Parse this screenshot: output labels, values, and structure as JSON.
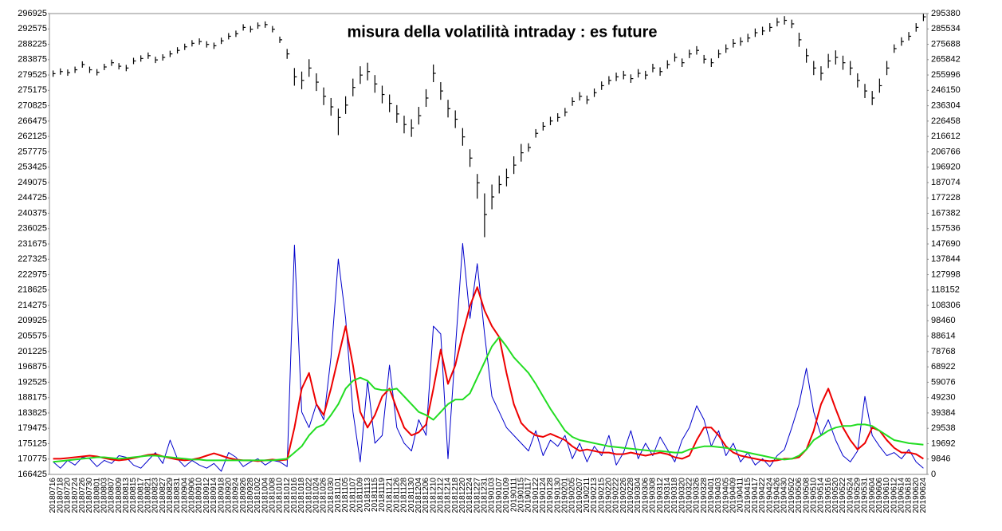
{
  "chart_data": {
    "type": "combo",
    "title": "misura della volatilità intraday : es future",
    "categories": [
      "20180716",
      "20180718",
      "20180720",
      "20180724",
      "20180726",
      "20180730",
      "20180801",
      "20180803",
      "20180807",
      "20180809",
      "20180813",
      "20180815",
      "20180817",
      "20180821",
      "20180823",
      "20180827",
      "20180829",
      "20180831",
      "20180904",
      "20180906",
      "20180910",
      "20180912",
      "20180914",
      "20180918",
      "20180920",
      "20180924",
      "20180926",
      "20180928",
      "20181002",
      "20181004",
      "20181008",
      "20181010",
      "20181012",
      "20181016",
      "20181018",
      "20181022",
      "20181024",
      "20181026",
      "20181030",
      "20181101",
      "20181105",
      "20181107",
      "20181109",
      "20181113",
      "20181115",
      "20181119",
      "20181121",
      "20181126",
      "20181128",
      "20181130",
      "20181204",
      "20181206",
      "20181210",
      "20181212",
      "20181214",
      "20181218",
      "20181220",
      "20181224",
      "20181227",
      "20181231",
      "20190103",
      "20190107",
      "20190109",
      "20190111",
      "20190115",
      "20190117",
      "20190122",
      "20190124",
      "20190128",
      "20190130",
      "20190201",
      "20190205",
      "20190207",
      "20190211",
      "20190213",
      "20190215",
      "20190220",
      "20190222",
      "20190226",
      "20190228",
      "20190304",
      "20190306",
      "20190308",
      "20190312",
      "20190314",
      "20190318",
      "20190320",
      "20190322",
      "20190326",
      "20190328",
      "20190401",
      "20190403",
      "20190405",
      "20190409",
      "20190411",
      "20190415",
      "20190417",
      "20190422",
      "20190424",
      "20190426",
      "20190430",
      "20190502",
      "20190506",
      "20190508",
      "20190510",
      "20190514",
      "20190516",
      "20190520",
      "20190522",
      "20190524",
      "20190529",
      "20190531",
      "20190604",
      "20190606",
      "20190610",
      "20190612",
      "20190614",
      "20190618",
      "20190620",
      "20190624"
    ],
    "price": {
      "color": "#000000",
      "high": [
        280800,
        281400,
        281100,
        281900,
        283400,
        281900,
        281200,
        282700,
        283900,
        282900,
        282400,
        284400,
        285100,
        285900,
        284700,
        285400,
        286400,
        287400,
        288400,
        289400,
        289900,
        289100,
        288700,
        290100,
        291400,
        292100,
        293900,
        293400,
        294400,
        294700,
        293400,
        290400,
        286900,
        281500,
        280500,
        284000,
        280000,
        276000,
        273000,
        270000,
        273500,
        278500,
        282000,
        283000,
        279500,
        276500,
        274000,
        271000,
        268000,
        267000,
        270500,
        275500,
        282500,
        277500,
        272500,
        269500,
        264500,
        258500,
        251500,
        246000,
        248500,
        251000,
        253000,
        256500,
        260000,
        260200,
        264200,
        266200,
        267700,
        268700,
        270200,
        273200,
        274700,
        273700,
        275700,
        277700,
        279200,
        280200,
        280700,
        279700,
        281200,
        280700,
        282700,
        281700,
        283700,
        285700,
        284200,
        286700,
        287700,
        285200,
        284200,
        286700,
        288200,
        289700,
        290200,
        291200,
        292700,
        293200,
        294200,
        295700,
        296200,
        295200,
        291500,
        287000,
        283500,
        282000,
        285500,
        286500,
        285000,
        283500,
        280000,
        277000,
        275000,
        278500,
        283500,
        288200,
        290200,
        291700,
        294200,
        296800
      ],
      "low": [
        279000,
        279600,
        279300,
        280100,
        281600,
        280100,
        279400,
        280900,
        282100,
        281100,
        280600,
        282600,
        283300,
        284100,
        282900,
        283600,
        284600,
        285600,
        286600,
        287600,
        288100,
        287300,
        286900,
        288300,
        289600,
        290300,
        292100,
        291600,
        292600,
        292900,
        291600,
        288600,
        284100,
        276500,
        275500,
        279000,
        275000,
        271000,
        268000,
        262500,
        268500,
        273500,
        277000,
        278000,
        274500,
        271500,
        269000,
        266000,
        263000,
        262000,
        265500,
        270500,
        277500,
        272500,
        267500,
        264500,
        259500,
        253500,
        244500,
        233600,
        241500,
        246000,
        248000,
        251500,
        255000,
        257800,
        261800,
        263800,
        265300,
        266300,
        267800,
        270800,
        272300,
        271300,
        273300,
        275300,
        276800,
        277800,
        278300,
        277300,
        278800,
        278300,
        280300,
        279300,
        281300,
        283300,
        281800,
        284300,
        285300,
        282800,
        281800,
        284300,
        285800,
        287300,
        287800,
        288800,
        290300,
        290800,
        291800,
        293300,
        293800,
        292800,
        287500,
        283000,
        279500,
        278000,
        281500,
        282500,
        281000,
        279500,
        276000,
        273000,
        271000,
        274500,
        279500,
        285800,
        287800,
        289300,
        291800,
        294800
      ],
      "close": [
        279900,
        280500,
        280200,
        281000,
        282500,
        281000,
        280300,
        281800,
        283000,
        282000,
        281500,
        283500,
        284200,
        285000,
        283800,
        284500,
        285500,
        286500,
        287500,
        288500,
        289000,
        288200,
        287800,
        289200,
        290500,
        291200,
        293000,
        292500,
        293500,
        293800,
        292500,
        289500,
        285500,
        279000,
        278000,
        281500,
        277500,
        273500,
        270500,
        267500,
        271000,
        276000,
        279500,
        280500,
        277000,
        274000,
        271500,
        268500,
        265500,
        264500,
        268000,
        273000,
        280000,
        275000,
        270000,
        267000,
        262000,
        256000,
        249000,
        240000,
        245000,
        248500,
        250500,
        254000,
        257500,
        259000,
        263000,
        265000,
        266500,
        267500,
        269000,
        272000,
        273500,
        272500,
        274500,
        276500,
        278000,
        279000,
        279500,
        278500,
        280000,
        279500,
        281500,
        280500,
        282500,
        284500,
        283000,
        285500,
        286500,
        284000,
        283000,
        285500,
        287000,
        288500,
        289000,
        290000,
        291500,
        292000,
        293000,
        294500,
        295000,
        294000,
        289500,
        285000,
        281500,
        280000,
        283500,
        284500,
        283000,
        281500,
        278000,
        275000,
        273000,
        276500,
        281500,
        287000,
        289000,
        290500,
        293000,
        296000
      ]
    },
    "series": [
      {
        "color": "#0000cc",
        "axis": "y2",
        "values": [
          8000,
          4000,
          9000,
          6000,
          11000,
          10000,
          5000,
          9000,
          7000,
          12000,
          11000,
          6000,
          4000,
          9000,
          14000,
          7000,
          22000,
          10000,
          5000,
          9000,
          6000,
          4000,
          7000,
          2000,
          14000,
          11000,
          5000,
          8000,
          10000,
          6000,
          9000,
          8000,
          5000,
          147000,
          40000,
          30000,
          45000,
          35000,
          75000,
          138000,
          100000,
          40000,
          8000,
          60000,
          20000,
          25000,
          70000,
          30000,
          20000,
          15000,
          35000,
          25000,
          95000,
          90000,
          10000,
          80000,
          148000,
          100000,
          135000,
          90000,
          50000,
          40000,
          30000,
          25000,
          20000,
          15000,
          28000,
          12000,
          22000,
          18000,
          25000,
          10000,
          20000,
          8000,
          18000,
          12000,
          25000,
          6000,
          14000,
          28000,
          10000,
          20000,
          12000,
          24000,
          16000,
          8000,
          22000,
          30000,
          44000,
          35000,
          18000,
          28000,
          12000,
          20000,
          8000,
          14000,
          6000,
          10000,
          5000,
          12000,
          16000,
          30000,
          45000,
          68000,
          40000,
          25000,
          35000,
          22000,
          12000,
          8000,
          15000,
          50000,
          25000,
          18000,
          12000,
          14000,
          10000,
          16000,
          8000,
          4000
        ]
      },
      {
        "color": "#ee0000",
        "axis": "y2",
        "values": [
          10000,
          10000,
          10500,
          11000,
          11500,
          12000,
          11500,
          10500,
          9500,
          9000,
          9500,
          10500,
          11500,
          12500,
          13000,
          11500,
          10500,
          9500,
          9000,
          9500,
          10500,
          12000,
          13500,
          12000,
          10500,
          9500,
          9000,
          9000,
          8500,
          9000,
          9500,
          9000,
          9500,
          30000,
          55000,
          65000,
          45000,
          38000,
          55000,
          75000,
          95000,
          70000,
          40000,
          30000,
          38000,
          50000,
          55000,
          42000,
          30000,
          25000,
          27000,
          32000,
          55000,
          80000,
          58000,
          70000,
          90000,
          108000,
          120000,
          105000,
          95000,
          88000,
          65000,
          45000,
          33000,
          28000,
          25000,
          24000,
          26000,
          24000,
          22000,
          18000,
          15000,
          16000,
          15000,
          14000,
          14000,
          13000,
          13000,
          14000,
          13000,
          12000,
          13000,
          14000,
          13000,
          11000,
          10000,
          12000,
          22000,
          30000,
          30000,
          25000,
          18000,
          14000,
          12000,
          11000,
          10000,
          9000,
          8500,
          9000,
          10000,
          10000,
          11000,
          16000,
          28000,
          45000,
          55000,
          42000,
          30000,
          22000,
          16000,
          20000,
          30000,
          28000,
          22000,
          17000,
          14000,
          14000,
          13000,
          10000
        ]
      },
      {
        "color": "#22dd22",
        "axis": "y2",
        "values": [
          8000,
          8500,
          9000,
          9500,
          10000,
          10500,
          11000,
          11000,
          10500,
          10000,
          10500,
          11000,
          11500,
          12000,
          12000,
          11500,
          11000,
          10500,
          10000,
          9500,
          9500,
          9000,
          9000,
          9000,
          9000,
          9000,
          9000,
          9000,
          9000,
          9000,
          9000,
          9500,
          10000,
          14000,
          18000,
          25000,
          30000,
          32000,
          38000,
          45000,
          55000,
          60000,
          62000,
          60000,
          55000,
          54000,
          54000,
          55000,
          50000,
          45000,
          40000,
          38000,
          35000,
          40000,
          45000,
          48000,
          48000,
          52000,
          62000,
          72000,
          82000,
          88000,
          82000,
          75000,
          70000,
          65000,
          58000,
          50000,
          42000,
          35000,
          28000,
          24000,
          22000,
          21000,
          20000,
          19000,
          18000,
          17500,
          17000,
          16500,
          16000,
          15500,
          15000,
          15000,
          14500,
          14000,
          14000,
          16000,
          17000,
          18000,
          18000,
          17500,
          17000,
          16000,
          15000,
          14000,
          13000,
          12000,
          11000,
          10000,
          9500,
          10000,
          12000,
          16000,
          22000,
          25000,
          28000,
          30000,
          31000,
          31000,
          32000,
          32000,
          31000,
          28000,
          25000,
          22000,
          21000,
          20000,
          19500,
          19000
        ]
      }
    ],
    "ylim": [
      166425,
      296925
    ],
    "yticks": [
      166425,
      170775,
      175125,
      179475,
      183825,
      188175,
      192525,
      196875,
      201225,
      205575,
      209925,
      214275,
      218625,
      222975,
      227325,
      231675,
      236025,
      240375,
      244725,
      249075,
      253425,
      257775,
      262125,
      266475,
      270825,
      275175,
      279525,
      283875,
      288225,
      292575,
      296925
    ],
    "y2lim": [
      0,
      295380
    ],
    "y2ticks": [
      0,
      9846,
      19692,
      29538,
      39384,
      49230,
      59076,
      68922,
      78768,
      88614,
      98460,
      108306,
      118152,
      127998,
      137844,
      147690,
      157536,
      167382,
      177228,
      187074,
      196920,
      206766,
      216612,
      226458,
      236304,
      246150,
      255996,
      265842,
      275688,
      285534,
      295380
    ]
  }
}
